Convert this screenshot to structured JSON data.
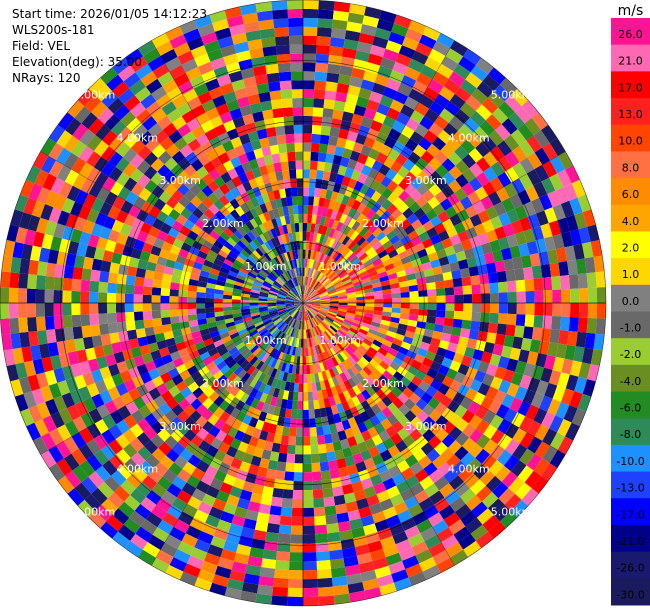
{
  "header": {
    "start_time": "Start time: 2026/01/05 14:12:23",
    "instrument": "WLS200s-181",
    "field": "Field: VEL",
    "elevation": "Elevation(deg): 35.00",
    "nrays": "NRays: 120"
  },
  "chart_data": {
    "type": "heatmap",
    "projection": "polar (PPI scan)",
    "field": "VEL",
    "units": "m/s",
    "elevation_deg": 35.0,
    "n_rays": 120,
    "range_rings_km": [
      1,
      2,
      3,
      4,
      5
    ],
    "ring_labels": [
      "1.00km",
      "2.00km",
      "3.00km",
      "4.00km",
      "5.00km"
    ],
    "max_range_km": 5.0,
    "colorbar": {
      "title": "m/s",
      "ticks": [
        "26.0",
        "21.0",
        "17.0",
        "13.0",
        "10.0",
        "8.0",
        "6.0",
        "4.0",
        "2.0",
        "1.0",
        "0.0",
        "-1.0",
        "-2.0",
        "-4.0",
        "-6.0",
        "-8.0",
        "-10.0",
        "-13.0",
        "-17.0",
        "-21.0",
        "-26.0",
        "-30.0"
      ],
      "colors": [
        "#ff1493",
        "#ff69b4",
        "#ff0000",
        "#ff2020",
        "#ff4500",
        "#ff7043",
        "#ff8c00",
        "#ffa500",
        "#ffff00",
        "#ffd700",
        "#808080",
        "#696969",
        "#9acd32",
        "#6b8e23",
        "#228b22",
        "#2e8b57",
        "#1e90ff",
        "#1e40ff",
        "#0000ff",
        "#00008b",
        "#191970",
        "#1a1a5e"
      ]
    }
  }
}
